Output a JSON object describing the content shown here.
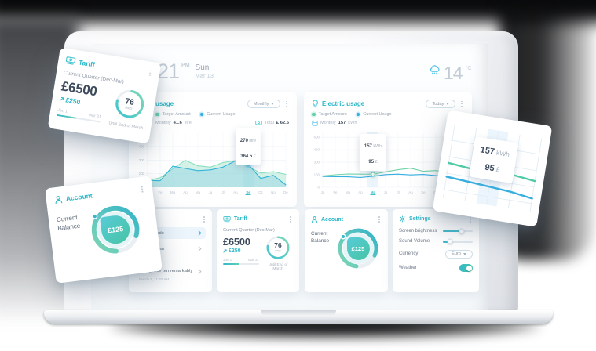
{
  "topbar": {
    "time": "21",
    "meridiem": "PM",
    "day": "Sun",
    "date": "Mar 13",
    "temp": "14",
    "temp_unit": "°C"
  },
  "usage_card": {
    "title": "usage",
    "period": "Monthly",
    "legend_target": "Target Amount",
    "legend_current": "Current Usage",
    "monthly_label": "Monthly",
    "monthly_value": "41.6",
    "monthly_unit": "litre",
    "total_label": "Total",
    "total_value": "£ 62.5"
  },
  "electric_card": {
    "title": "Electric usage",
    "period": "Today",
    "legend_target": "Target Amount",
    "legend_current": "Current Usage",
    "monthly_label": "Monthly",
    "monthly_value": "157",
    "monthly_unit": "kWh"
  },
  "messages_card": {
    "rows": [
      {
        "text": "se solicitude",
        "sub": ""
      },
      {
        "text": "change man",
        "sub": ""
      },
      {
        "text": "Indulgence ten remarkably",
        "sub": "March 2, 11:20 AM"
      }
    ]
  },
  "tariff_card": {
    "title": "Tariff",
    "quarter_label": "Current Quarter (Dec-Mar)",
    "amount": "£6500",
    "delta": "£250",
    "start": "Jan 1",
    "end": "Mar 31",
    "progress_pct": 45,
    "days_value": "76",
    "days_unit": "days",
    "footnote": "Until End of March",
    "ring_pct": 77
  },
  "account_card": {
    "title": "Account",
    "balance_label": "Current Balance",
    "balance": "£125",
    "ring_pct": 80
  },
  "settings_card": {
    "title": "Settings",
    "brightness_label": "Screen brightness",
    "brightness_pct": 62,
    "volume_label": "Sound Volume",
    "volume_pct": 24,
    "currency_label": "Currency",
    "currency_value": "Euro",
    "weather_label": "Weather",
    "weather_on": true
  },
  "colors": {
    "accent": "#2eb9c9",
    "green": "#6fd3a7",
    "blue": "#35aee0",
    "dark_text": "#3e4b5c",
    "muted_text": "#a9b4c0"
  },
  "chart_data": [
    {
      "id": "water-usage",
      "type": "area",
      "title": "usage",
      "period": "Monthly",
      "x_labels": [
        "Ja",
        "Fe",
        "Ma",
        "Ap",
        "Ma",
        "Ju",
        "Jl",
        "Au",
        "Se",
        "Oc",
        "No",
        "De"
      ],
      "active_index": 8,
      "y_min": 100,
      "y_max": 480,
      "y_ticks": [
        {
          "v": 400,
          "label": "400"
        },
        {
          "v": 300,
          "label": "300"
        },
        {
          "v": 200,
          "label": "200"
        }
      ],
      "series": [
        {
          "name": "Target Amount",
          "type": "area",
          "color": "#8edec0",
          "fill": "rgba(142,222,192,0.38)",
          "values": [
            150,
            170,
            235,
            298,
            258,
            248,
            282,
            296,
            252,
            205,
            215,
            195
          ]
        },
        {
          "name": "Current Usage",
          "type": "area",
          "color": "#33b5d8",
          "fill": "rgba(96,190,228,0.26)",
          "values": [
            150,
            148,
            255,
            238,
            222,
            228,
            248,
            295,
            270,
            165,
            188,
            118
          ]
        }
      ],
      "marker": {
        "series": 1,
        "index": 8
      },
      "tooltip": [
        {
          "value": "270",
          "unit": "litre"
        },
        {
          "value": "364.5",
          "unit": "£"
        }
      ]
    },
    {
      "id": "electric-usage",
      "type": "line",
      "title": "Electric usage",
      "period": "Today",
      "x_labels": [
        "Ja",
        "Fe",
        "Ma",
        "Ap",
        "Ma",
        "Ju",
        "Jl",
        "Au",
        "Se",
        "Oc",
        "No",
        "De"
      ],
      "active_index": 4,
      "y_min": 0,
      "y_max": 620,
      "y_ticks": [
        {
          "v": 600,
          "label": "600"
        },
        {
          "v": 450,
          "label": "450"
        },
        {
          "v": 300,
          "label": "300"
        },
        {
          "v": 150,
          "label": "150"
        },
        {
          "v": 0,
          "label": "0"
        }
      ],
      "series": [
        {
          "name": "Target Amount",
          "type": "line",
          "color": "#6fd3a7",
          "values": [
            135,
            150,
            160,
            158,
            157,
            185,
            210,
            228,
            192,
            200,
            178,
            168
          ]
        },
        {
          "name": "Current Usage",
          "type": "line",
          "color": "#35aee0",
          "values": [
            130,
            128,
            126,
            118,
            132,
            152,
            158,
            148,
            154,
            140,
            120,
            105
          ]
        }
      ],
      "marker": {
        "series": 0,
        "index": 4
      },
      "tooltip": [
        {
          "value": "157",
          "unit": "kWh"
        },
        {
          "value": "95",
          "unit": "£"
        }
      ]
    },
    {
      "id": "electric-zoom-fragment",
      "type": "line",
      "x_labels": [
        "",
        "",
        "",
        "",
        ""
      ],
      "active_index": -1,
      "y_min": 40,
      "y_max": 300,
      "y_ticks": [
        {
          "v": 250,
          "label": ""
        },
        {
          "v": 190,
          "label": ""
        },
        {
          "v": 130,
          "label": ""
        },
        {
          "v": 70,
          "label": ""
        }
      ],
      "series": [
        {
          "name": "Target Amount",
          "type": "line",
          "color": "#4ecba4",
          "values": [
            168,
            160,
            157,
            161,
            152
          ]
        },
        {
          "name": "Current Usage",
          "type": "line",
          "color": "#35aee0",
          "values": [
            118,
            112,
            106,
            100,
            88
          ]
        }
      ],
      "marker": {
        "series": 0,
        "index": 2
      },
      "tooltip": [
        {
          "value": "157",
          "unit": "kWh"
        },
        {
          "value": "95",
          "unit": "£"
        }
      ]
    }
  ]
}
